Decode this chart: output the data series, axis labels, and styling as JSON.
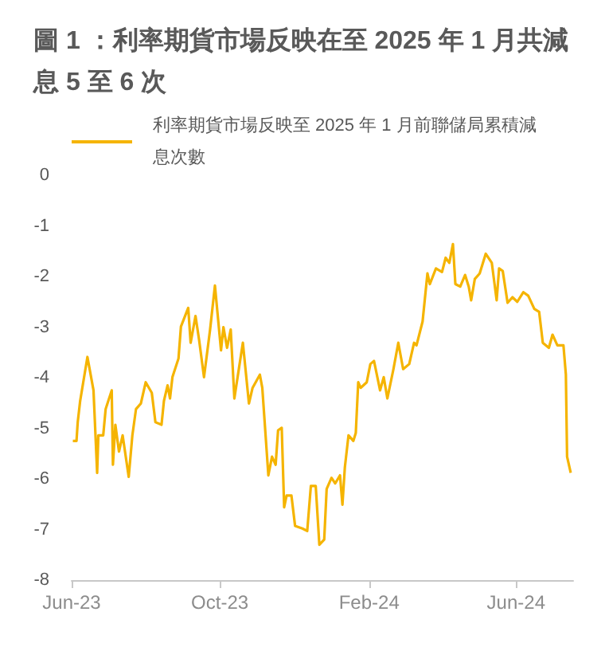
{
  "chart_data": {
    "type": "line",
    "title": "圖 1 ：利率期貨市場反映在至 2025 年 1 月共減息 5 至 6 次",
    "legend": "top",
    "xlim": [
      "2023-06-01",
      "2024-07-18"
    ],
    "xticks": [
      {
        "value": "2023-06-01",
        "label": "Jun-23"
      },
      {
        "value": "2023-10-01",
        "label": "Oct-23"
      },
      {
        "value": "2024-02-01",
        "label": "Feb-24"
      },
      {
        "value": "2024-06-01",
        "label": "Jun-24"
      }
    ],
    "ylim": [
      -8,
      0
    ],
    "yticks": [
      0,
      -1,
      -2,
      -3,
      -4,
      -5,
      -6,
      -7,
      -8
    ],
    "series": [
      {
        "name": "利率期貨市場反映至 2025 年 1 月前聯儲局累積減息次數",
        "color": "#f5b400",
        "x": [
          "2023-06-02",
          "2023-06-05",
          "2023-06-06",
          "2023-06-08",
          "2023-06-14",
          "2023-06-19",
          "2023-06-22",
          "2023-06-23",
          "2023-06-27",
          "2023-06-29",
          "2023-07-04",
          "2023-07-05",
          "2023-07-07",
          "2023-07-10",
          "2023-07-13",
          "2023-07-18",
          "2023-07-21",
          "2023-07-24",
          "2023-07-28",
          "2023-08-01",
          "2023-08-06",
          "2023-08-09",
          "2023-08-14",
          "2023-08-16",
          "2023-08-19",
          "2023-08-21",
          "2023-08-23",
          "2023-08-28",
          "2023-08-30",
          "2023-09-05",
          "2023-09-07",
          "2023-09-11",
          "2023-09-14",
          "2023-09-18",
          "2023-09-23",
          "2023-09-27",
          "2023-10-02",
          "2023-10-04",
          "2023-10-07",
          "2023-10-10",
          "2023-10-13",
          "2023-10-17",
          "2023-10-20",
          "2023-10-25",
          "2023-10-28",
          "2023-11-03",
          "2023-11-05",
          "2023-11-10",
          "2023-11-13",
          "2023-11-16",
          "2023-11-18",
          "2023-11-21",
          "2023-11-23",
          "2023-11-25",
          "2023-11-29",
          "2023-12-02",
          "2023-12-08",
          "2023-12-12",
          "2023-12-15",
          "2023-12-19",
          "2023-12-22",
          "2023-12-26",
          "2023-12-28",
          "2024-01-01",
          "2024-01-04",
          "2024-01-08",
          "2024-01-10",
          "2024-01-12",
          "2024-01-15",
          "2024-01-19",
          "2024-01-21",
          "2024-01-23",
          "2024-01-25",
          "2024-01-30",
          "2024-02-02",
          "2024-02-05",
          "2024-02-10",
          "2024-02-13",
          "2024-02-16",
          "2024-02-21",
          "2024-02-25",
          "2024-02-29",
          "2024-03-05",
          "2024-03-09",
          "2024-03-11",
          "2024-03-16",
          "2024-03-20",
          "2024-03-22",
          "2024-03-27",
          "2024-04-01",
          "2024-04-04",
          "2024-04-07",
          "2024-04-10",
          "2024-04-12",
          "2024-04-16",
          "2024-04-20",
          "2024-04-23",
          "2024-04-25",
          "2024-04-28",
          "2024-05-02",
          "2024-05-07",
          "2024-05-12",
          "2024-05-16",
          "2024-05-18",
          "2024-05-21",
          "2024-05-25",
          "2024-05-29",
          "2024-06-02",
          "2024-06-07",
          "2024-06-11",
          "2024-06-16",
          "2024-06-20",
          "2024-06-23",
          "2024-06-28",
          "2024-07-01",
          "2024-07-05",
          "2024-07-10",
          "2024-07-12",
          "2024-07-13",
          "2024-07-16"
        ],
        "values": [
          -5.25,
          -5.25,
          -4.88,
          -4.46,
          -3.59,
          -4.25,
          -5.88,
          -5.14,
          -5.14,
          -4.62,
          -4.25,
          -5.72,
          -4.93,
          -5.46,
          -5.14,
          -5.96,
          -5.14,
          -4.62,
          -4.51,
          -4.09,
          -4.3,
          -4.88,
          -4.93,
          -4.46,
          -4.15,
          -4.41,
          -3.99,
          -3.62,
          -2.99,
          -2.62,
          -3.31,
          -2.78,
          -3.26,
          -3.99,
          -3.05,
          -2.18,
          -3.46,
          -3.0,
          -3.41,
          -3.05,
          -4.41,
          -3.78,
          -3.31,
          -4.51,
          -4.2,
          -3.94,
          -4.2,
          -5.93,
          -5.56,
          -5.72,
          -5.04,
          -4.99,
          -6.56,
          -6.33,
          -6.33,
          -6.93,
          -6.98,
          -7.03,
          -6.14,
          -6.14,
          -7.3,
          -7.2,
          -6.2,
          -5.98,
          -6.09,
          -5.93,
          -6.51,
          -5.77,
          -5.14,
          -5.25,
          -5.09,
          -4.09,
          -4.2,
          -4.09,
          -3.73,
          -3.67,
          -4.25,
          -3.99,
          -4.41,
          -3.83,
          -3.31,
          -3.83,
          -3.73,
          -3.31,
          -3.36,
          -2.89,
          -1.94,
          -2.15,
          -1.84,
          -1.91,
          -1.63,
          -1.73,
          -1.36,
          -2.15,
          -2.2,
          -1.97,
          -2.2,
          -2.47,
          -2.05,
          -1.94,
          -1.55,
          -1.73,
          -2.47,
          -1.84,
          -1.89,
          -2.52,
          -2.41,
          -2.5,
          -2.31,
          -2.38,
          -2.64,
          -2.7,
          -3.31,
          -3.41,
          -3.15,
          -3.36,
          -3.36,
          -3.94,
          -5.56,
          -5.88
        ]
      }
    ]
  }
}
